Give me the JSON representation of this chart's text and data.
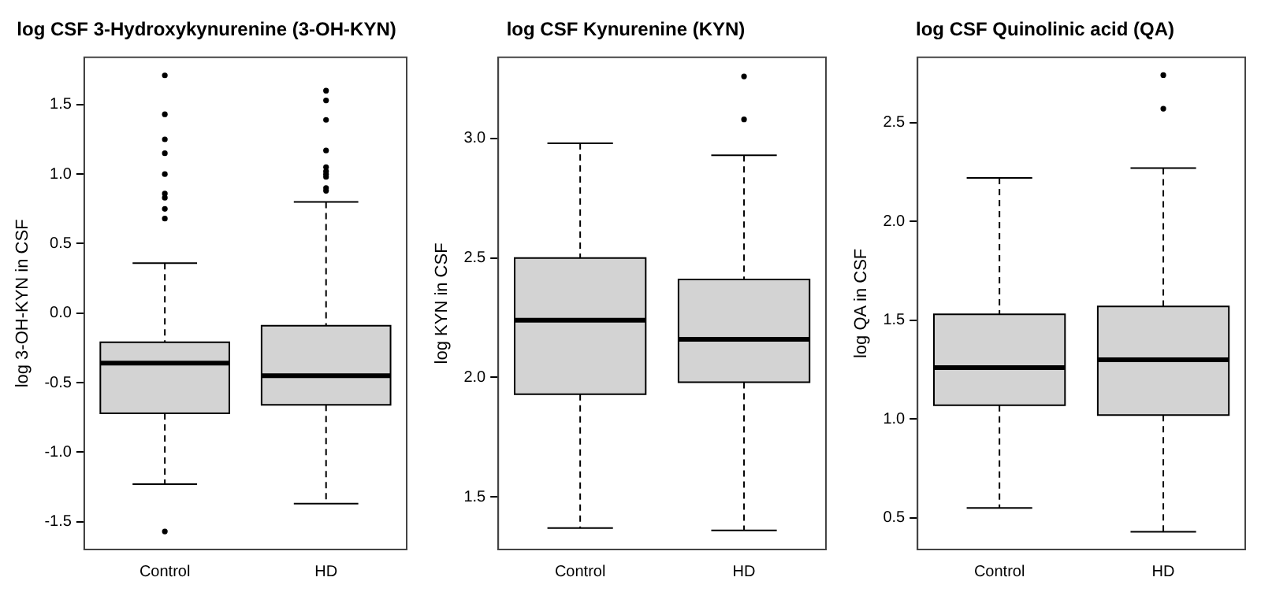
{
  "chart_data": [
    {
      "type": "box",
      "title": "log CSF 3-Hydroxykynurenine (3-OH-KYN)",
      "ylabel": "log 3-OH-KYN in CSF",
      "categories": [
        "Control",
        "HD"
      ],
      "ylim": [
        -1.7,
        1.84
      ],
      "yticks": [
        -1.5,
        {
          "value": -1,
          "label": "-1.0"
        },
        -0.5,
        {
          "value": 0,
          "label": "0.0"
        },
        0.5,
        {
          "value": 1,
          "label": "1.0"
        },
        1.5
      ],
      "grid": false,
      "series": [
        {
          "color": "#d3d3d3",
          "boxes": [
            {
              "low": -1.23,
              "q1": -0.72,
              "median": -0.36,
              "q3": -0.21,
              "high": 0.36,
              "outliers": [
                1.71,
                1.43,
                1.25,
                1.15,
                1.0,
                0.86,
                0.83,
                0.75,
                0.68,
                -1.57
              ]
            },
            {
              "low": -1.37,
              "q1": -0.66,
              "median": -0.45,
              "q3": -0.09,
              "high": 0.8,
              "outliers": [
                1.6,
                1.53,
                1.39,
                1.17,
                1.05,
                1.02,
                1.0,
                0.98,
                0.9,
                0.88
              ]
            }
          ]
        }
      ]
    },
    {
      "type": "box",
      "title": "log CSF Kynurenine (KYN)",
      "ylabel": "log KYN in CSF",
      "categories": [
        "Control",
        "HD"
      ],
      "ylim": [
        1.28,
        3.34
      ],
      "yticks": [
        1.5,
        {
          "value": 2,
          "label": "2.0"
        },
        2.5,
        {
          "value": 3,
          "label": "3.0"
        }
      ],
      "grid": false,
      "series": [
        {
          "color": "#d3d3d3",
          "boxes": [
            {
              "low": 1.37,
              "q1": 1.93,
              "median": 2.24,
              "q3": 2.5,
              "high": 2.98
            },
            {
              "low": 1.36,
              "q1": 1.98,
              "median": 2.16,
              "q3": 2.41,
              "high": 2.93,
              "outliers": [
                3.26,
                3.08
              ]
            }
          ]
        }
      ]
    },
    {
      "type": "box",
      "title": "log CSF Quinolinic acid (QA)",
      "ylabel": "log QA in CSF",
      "categories": [
        "Control",
        "HD"
      ],
      "ylim": [
        0.34,
        2.83
      ],
      "yticks": [
        0.5,
        {
          "value": 1,
          "label": "1.0"
        },
        1.5,
        {
          "value": 2,
          "label": "2.0"
        },
        2.5
      ],
      "grid": false,
      "series": [
        {
          "color": "#d3d3d3",
          "boxes": [
            {
              "low": 0.55,
              "q1": 1.07,
              "median": 1.26,
              "q3": 1.53,
              "high": 2.22
            },
            {
              "low": 0.43,
              "q1": 1.02,
              "median": 1.3,
              "q3": 1.57,
              "high": 2.27,
              "outliers": [
                2.74,
                2.57
              ]
            }
          ]
        }
      ]
    }
  ]
}
